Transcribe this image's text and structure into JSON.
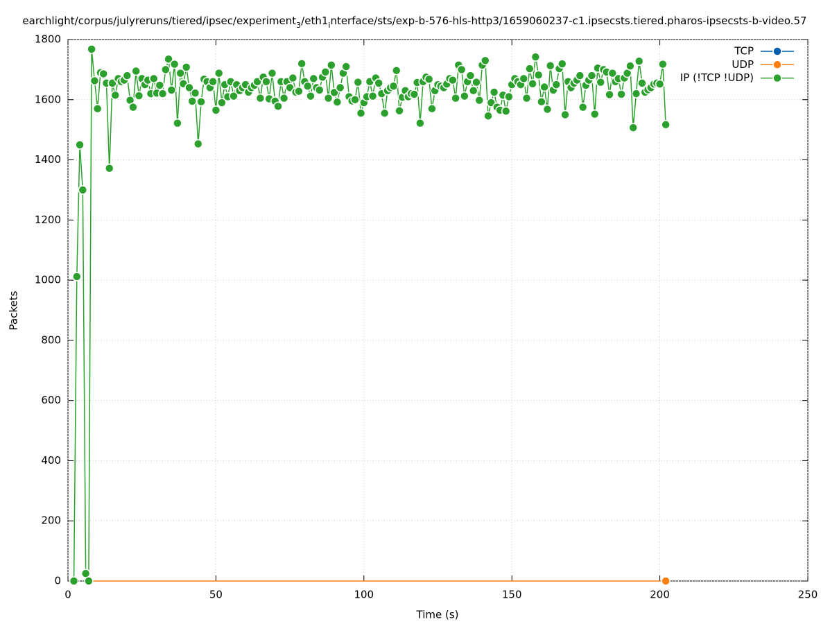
{
  "chart_data": {
    "type": "line",
    "title_segments": [
      "earchlight/corpus/julyreruns/tiered/ipsec/experiment",
      "3",
      "/eth1",
      "i",
      "nterface/sts/exp-b-576-hls-http3/1659060237-c1.ipsecsts.tiered.pharos-ipsecsts-b-video.57"
    ],
    "xlabel": "Time (s)",
    "ylabel": "Packets",
    "xlim": [
      0,
      250
    ],
    "xticks": [
      0,
      50,
      100,
      150,
      200,
      250
    ],
    "ylim": [
      0,
      1800
    ],
    "yticks": [
      0,
      200,
      400,
      600,
      800,
      1000,
      1200,
      1400,
      1600,
      1800
    ],
    "grid": true,
    "legend": "top-right",
    "series": [
      {
        "name": "TCP",
        "color": "#0060ad",
        "markers": "all",
        "x": [],
        "values": []
      },
      {
        "name": "UDP",
        "color": "#ff7f0e",
        "markers": "last",
        "x": [
          8,
          9,
          10,
          11,
          12,
          13,
          14,
          15,
          16,
          17,
          18,
          19,
          20,
          21,
          22,
          23,
          24,
          25,
          26,
          27,
          28,
          29,
          30,
          31,
          32,
          33,
          34,
          35,
          36,
          37,
          38,
          39,
          40,
          41,
          42,
          43,
          44,
          45,
          46,
          47,
          48,
          49,
          50,
          51,
          52,
          53,
          54,
          55,
          56,
          57,
          58,
          59,
          60,
          61,
          62,
          63,
          64,
          65,
          66,
          67,
          68,
          69,
          70,
          71,
          72,
          73,
          74,
          75,
          76,
          77,
          78,
          79,
          80,
          81,
          82,
          83,
          84,
          85,
          86,
          87,
          88,
          89,
          90,
          91,
          92,
          93,
          94,
          95,
          96,
          97,
          98,
          99,
          100,
          101,
          102,
          103,
          104,
          105,
          106,
          107,
          108,
          109,
          110,
          111,
          112,
          113,
          114,
          115,
          116,
          117,
          118,
          119,
          120,
          121,
          122,
          123,
          124,
          125,
          126,
          127,
          128,
          129,
          130,
          131,
          132,
          133,
          134,
          135,
          136,
          137,
          138,
          139,
          140,
          141,
          142,
          143,
          144,
          145,
          146,
          147,
          148,
          149,
          150,
          151,
          152,
          153,
          154,
          155,
          156,
          157,
          158,
          159,
          160,
          161,
          162,
          163,
          164,
          165,
          166,
          167,
          168,
          169,
          170,
          171,
          172,
          173,
          174,
          175,
          176,
          177,
          178,
          179,
          180,
          181,
          182,
          183,
          184,
          185,
          186,
          187,
          188,
          189,
          190,
          191,
          192,
          193,
          194,
          195,
          196,
          197,
          198,
          199,
          200,
          201,
          202
        ],
        "values": [
          0,
          0,
          0,
          0,
          0,
          0,
          0,
          0,
          0,
          0,
          0,
          0,
          0,
          0,
          0,
          0,
          0,
          0,
          0,
          0,
          0,
          0,
          0,
          0,
          0,
          0,
          0,
          0,
          0,
          0,
          0,
          0,
          0,
          0,
          0,
          0,
          0,
          0,
          0,
          0,
          0,
          0,
          0,
          0,
          0,
          0,
          0,
          0,
          0,
          0,
          0,
          0,
          0,
          0,
          0,
          0,
          0,
          0,
          0,
          0,
          0,
          0,
          0,
          0,
          0,
          0,
          0,
          0,
          0,
          0,
          0,
          0,
          0,
          0,
          0,
          0,
          0,
          0,
          0,
          0,
          0,
          0,
          0,
          0,
          0,
          0,
          0,
          0,
          0,
          0,
          0,
          0,
          0,
          0,
          0,
          0,
          0,
          0,
          0,
          0,
          0,
          0,
          0,
          0,
          0,
          0,
          0,
          0,
          0,
          0,
          0,
          0,
          0,
          0,
          0,
          0,
          0,
          0,
          0,
          0,
          0,
          0,
          0,
          0,
          0,
          0,
          0,
          0,
          0,
          0,
          0,
          0,
          0,
          0,
          0,
          0,
          0,
          0,
          0,
          0,
          0,
          0,
          0,
          0,
          0,
          0,
          0,
          0,
          0,
          0,
          0,
          0,
          0,
          0,
          0,
          0,
          0,
          0,
          0,
          0,
          0,
          0,
          0,
          0,
          0,
          0,
          0,
          0,
          0,
          0,
          0,
          0,
          0,
          0,
          0,
          0,
          0,
          0,
          0,
          0,
          0,
          0,
          0,
          0,
          0,
          0,
          0,
          0,
          0,
          0,
          0,
          0,
          0,
          0,
          0
        ]
      },
      {
        "name": "IP (!TCP  !UDP)",
        "color": "#2ca02c",
        "markers": "all",
        "x": [
          2,
          3,
          4,
          5,
          6,
          7,
          8,
          9,
          10,
          11,
          12,
          13,
          14,
          15,
          16,
          17,
          18,
          19,
          20,
          21,
          22,
          23,
          24,
          25,
          26,
          27,
          28,
          29,
          30,
          31,
          32,
          33,
          34,
          35,
          36,
          37,
          38,
          39,
          40,
          41,
          42,
          43,
          44,
          45,
          46,
          47,
          48,
          49,
          50,
          51,
          52,
          53,
          54,
          55,
          56,
          57,
          58,
          59,
          60,
          61,
          62,
          63,
          64,
          65,
          66,
          67,
          68,
          69,
          70,
          71,
          72,
          73,
          74,
          75,
          76,
          77,
          78,
          79,
          80,
          81,
          82,
          83,
          84,
          85,
          86,
          87,
          88,
          89,
          90,
          91,
          92,
          93,
          94,
          95,
          96,
          97,
          98,
          99,
          100,
          101,
          102,
          103,
          104,
          105,
          106,
          107,
          108,
          109,
          110,
          111,
          112,
          113,
          114,
          115,
          116,
          117,
          118,
          119,
          120,
          121,
          122,
          123,
          124,
          125,
          126,
          127,
          128,
          129,
          130,
          131,
          132,
          133,
          134,
          135,
          136,
          137,
          138,
          139,
          140,
          141,
          142,
          143,
          144,
          145,
          146,
          147,
          148,
          149,
          150,
          151,
          152,
          153,
          154,
          155,
          156,
          157,
          158,
          159,
          160,
          161,
          162,
          163,
          164,
          165,
          166,
          167,
          168,
          169,
          170,
          171,
          172,
          173,
          174,
          175,
          176,
          177,
          178,
          179,
          180,
          181,
          182,
          183,
          184,
          185,
          186,
          187,
          188,
          189,
          190,
          191,
          192,
          193,
          194,
          195,
          196,
          197,
          198,
          199,
          200,
          201,
          202
        ],
        "values": [
          0,
          1012,
          1450,
          1300,
          25,
          0,
          1768,
          1663,
          1570,
          1690,
          1686,
          1655,
          1372,
          1655,
          1615,
          1670,
          1660,
          1665,
          1680,
          1598,
          1575,
          1695,
          1613,
          1670,
          1650,
          1665,
          1620,
          1670,
          1622,
          1648,
          1620,
          1700,
          1735,
          1632,
          1718,
          1522,
          1688,
          1653,
          1708,
          1640,
          1595,
          1622,
          1453,
          1593,
          1668,
          1660,
          1640,
          1660,
          1565,
          1688,
          1590,
          1650,
          1610,
          1660,
          1612,
          1650,
          1630,
          1640,
          1650,
          1625,
          1640,
          1648,
          1660,
          1605,
          1675,
          1660,
          1603,
          1688,
          1595,
          1578,
          1660,
          1605,
          1660,
          1640,
          1672,
          1625,
          1628,
          1720,
          1660,
          1645,
          1612,
          1670,
          1640,
          1632,
          1675,
          1692,
          1605,
          1715,
          1624,
          1592,
          1640,
          1688,
          1710,
          1610,
          1596,
          1600,
          1658,
          1555,
          1590,
          1610,
          1660,
          1612,
          1672,
          1655,
          1620,
          1555,
          1630,
          1640,
          1645,
          1697,
          1563,
          1608,
          1630,
          1610,
          1620,
          1618,
          1657,
          1522,
          1660,
          1675,
          1668,
          1570,
          1630,
          1650,
          1645,
          1640,
          1652,
          1670,
          1665,
          1605,
          1715,
          1700,
          1612,
          1660,
          1680,
          1630,
          1658,
          1598,
          1715,
          1730,
          1546,
          1590,
          1625,
          1575,
          1565,
          1615,
          1562,
          1610,
          1650,
          1670,
          1660,
          1650,
          1670,
          1605,
          1703,
          1653,
          1742,
          1682,
          1593,
          1642,
          1568,
          1713,
          1632,
          1650,
          1703,
          1719,
          1550,
          1660,
          1640,
          1655,
          1665,
          1680,
          1575,
          1648,
          1665,
          1680,
          1552,
          1705,
          1658,
          1700,
          1692,
          1617,
          1688,
          1660,
          1670,
          1618,
          1672,
          1688,
          1712,
          1507,
          1620,
          1728,
          1655,
          1625,
          1633,
          1640,
          1652,
          1655,
          1652,
          1718,
          1517
        ]
      }
    ]
  }
}
